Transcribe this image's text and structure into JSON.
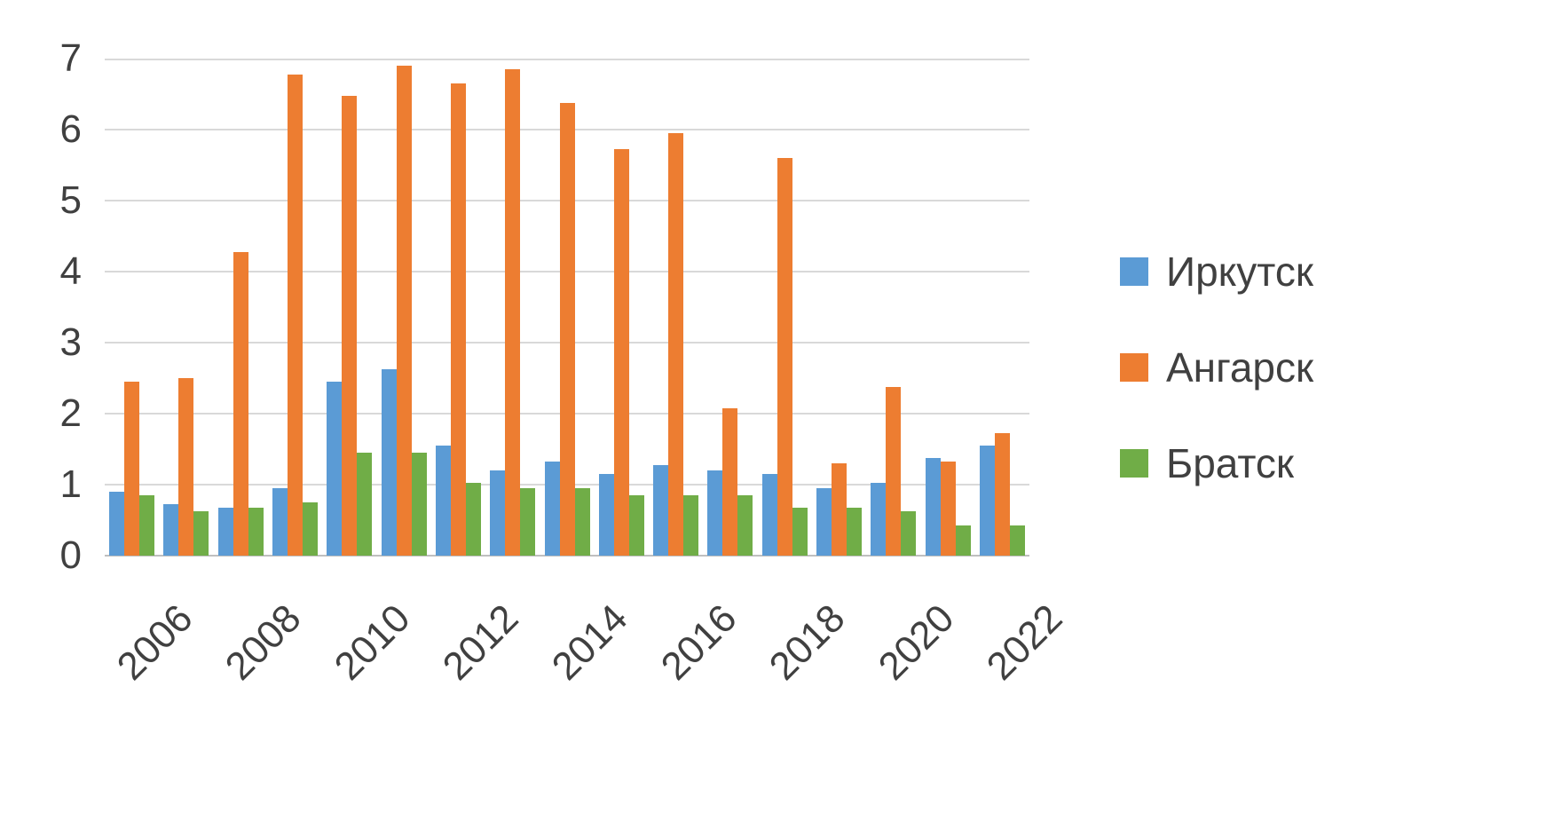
{
  "chart_data": {
    "type": "bar",
    "title": "",
    "categories": [
      "2006",
      "2007",
      "2008",
      "2009",
      "2010",
      "2011",
      "2012",
      "2013",
      "2014",
      "2015",
      "2016",
      "2017",
      "2018",
      "2019",
      "2020",
      "2021",
      "2022"
    ],
    "x_tick_labels": [
      "2006",
      "2008",
      "2010",
      "2012",
      "2014",
      "2016",
      "2018",
      "2020",
      "2022"
    ],
    "series": [
      {
        "name": "Иркутск",
        "color": "#5B9BD5",
        "values": [
          0.9,
          0.72,
          0.68,
          0.95,
          2.45,
          2.63,
          1.55,
          1.2,
          1.32,
          1.15,
          1.27,
          1.2,
          1.15,
          0.95,
          1.03,
          1.38,
          1.55
        ]
      },
      {
        "name": "Ангарск",
        "color": "#ED7D31",
        "values": [
          2.45,
          2.5,
          4.27,
          6.78,
          6.48,
          6.9,
          6.65,
          6.85,
          6.37,
          5.72,
          5.95,
          2.08,
          5.6,
          1.3,
          2.37,
          1.32,
          1.72
        ]
      },
      {
        "name": "Братск",
        "color": "#70AD47",
        "values": [
          0.85,
          0.62,
          0.68,
          0.75,
          1.45,
          1.45,
          1.02,
          0.95,
          0.95,
          0.85,
          0.85,
          0.85,
          0.68,
          0.67,
          0.62,
          0.43,
          0.43
        ]
      }
    ],
    "y_ticks": [
      0,
      1,
      2,
      3,
      4,
      5,
      6,
      7
    ],
    "ylim": [
      0,
      7
    ],
    "grid": true,
    "legend_position": "right",
    "xlabel": "",
    "ylabel": ""
  },
  "colors": {
    "gridline": "#D9D9D9",
    "axis": "#BFBFBF",
    "text": "#404040",
    "background": "#FFFFFF"
  }
}
